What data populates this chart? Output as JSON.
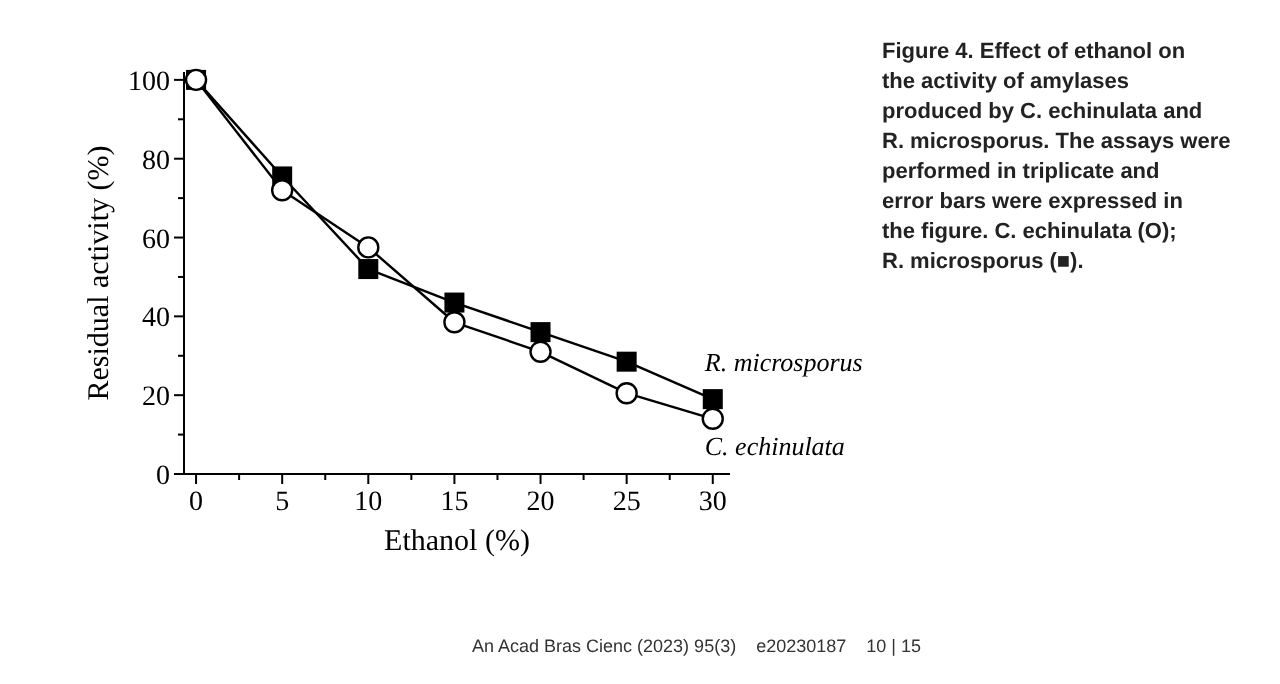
{
  "chart_data": {
    "type": "line",
    "xlabel": "Ethanol (%)",
    "ylabel": "Residual activity (%)",
    "x": [
      0,
      5,
      10,
      15,
      20,
      25,
      30
    ],
    "series": [
      {
        "name": "R. microsporus",
        "color": "#000000",
        "marker": "square",
        "values": [
          100,
          75.5,
          52,
          43.5,
          36,
          28.5,
          19
        ]
      },
      {
        "name": "C. echinulata",
        "color": "#000000",
        "marker": "circle",
        "values": [
          100,
          72,
          57.5,
          38.5,
          31,
          20.5,
          14
        ]
      }
    ],
    "xlim": [
      -0.7,
      31
    ],
    "ylim": [
      0,
      102
    ],
    "xticks": [
      0,
      {
        "value": 2.5,
        "label": null
      },
      5,
      {
        "value": 7.5,
        "label": null
      },
      10,
      {
        "value": 12.5,
        "label": null
      },
      15,
      {
        "value": 17.5,
        "label": null
      },
      20,
      {
        "value": 22.5,
        "label": null
      },
      25,
      {
        "value": 27.5,
        "label": null
      },
      30
    ],
    "yticks": [
      0,
      {
        "value": 10,
        "label": null
      },
      20,
      {
        "value": 30,
        "label": null
      },
      40,
      {
        "value": 50,
        "label": null
      },
      60,
      {
        "value": 70,
        "label": null
      },
      80,
      {
        "value": 90,
        "label": null
      },
      100
    ],
    "grid": false,
    "line_style": "solid",
    "annotations": [
      "Figure 4. Effect of ethanol on the activity of amylases produced by C. echinulata and R. microsporus. The assays were performed in triplicate and error bars were expressed in the figure. C. echinulata (O); R. microsporus (■).",
      "An Acad Bras Cienc (2023) 95(3)    e20230187    10 | 15"
    ]
  }
}
